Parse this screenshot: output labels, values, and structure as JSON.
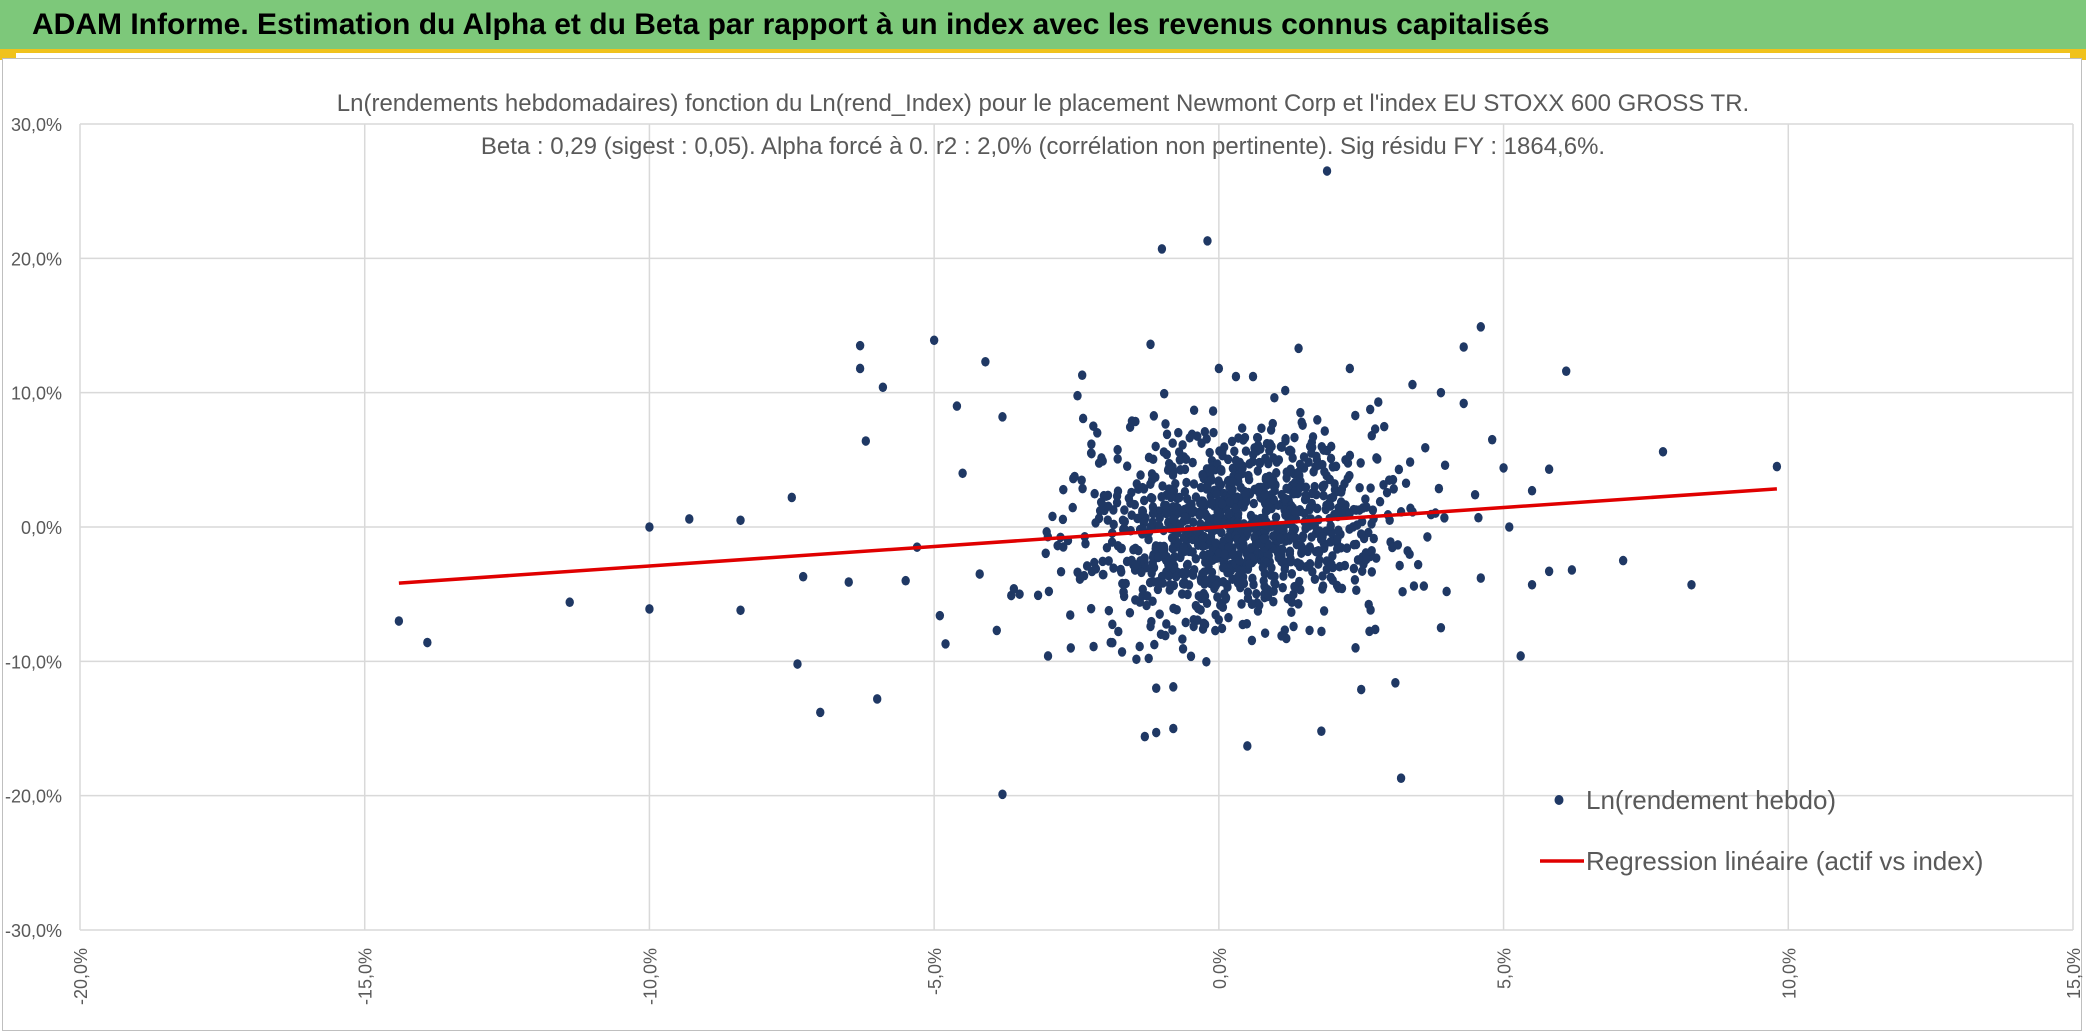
{
  "banner": {
    "title": "ADAM Informe. Estimation du Alpha et du Beta par rapport à un index avec les revenus connus capitalisés",
    "background_color": "#7dc87a",
    "accent_color": "#f0c21c"
  },
  "chart_data": {
    "type": "scatter",
    "title_line1": "Ln(rendements hebdomadaires) fonction du Ln(rend_Index) pour le placement Newmont Corp et l'index EU STOXX 600 GROSS TR.",
    "title_line2": "Beta : 0,29 (sigest : 0,05). Alpha forcé à 0. r2 : 2,0% (corrélation non pertinente). Sig résidu FY : 1864,6%.",
    "xlim": [
      -20,
      15
    ],
    "ylim": [
      -30,
      30
    ],
    "x_ticks": [
      -20,
      -15,
      -10,
      -5,
      0,
      5,
      10,
      15
    ],
    "y_ticks": [
      -30,
      -20,
      -10,
      0,
      10,
      20,
      30
    ],
    "x_tick_labels": [
      "-20,0%",
      "-15,0%",
      "-10,0%",
      "-5,0%",
      "0,0%",
      "5,0%",
      "10,0%",
      "15,0%"
    ],
    "y_tick_labels": [
      "-30,0%",
      "-20,0%",
      "-10,0%",
      "0,0%",
      "10,0%",
      "20,0%",
      "30,0%"
    ],
    "grid": true,
    "legend_position": "bottom-right",
    "series": [
      {
        "name": "Ln(rendement hebdo)",
        "kind": "scatter",
        "color": "#1f3864",
        "points": [
          [
            -14.4,
            -7.0
          ],
          [
            -13.9,
            -8.6
          ],
          [
            -11.4,
            -5.6
          ],
          [
            -10.0,
            -6.1
          ],
          [
            -10.0,
            0.0
          ],
          [
            -9.3,
            0.6
          ],
          [
            -8.4,
            0.5
          ],
          [
            -8.4,
            -6.2
          ],
          [
            -7.5,
            2.2
          ],
          [
            -7.4,
            -10.2
          ],
          [
            -7.3,
            -3.7
          ],
          [
            -7.0,
            -13.8
          ],
          [
            -6.5,
            -4.1
          ],
          [
            -6.3,
            13.5
          ],
          [
            -6.3,
            11.8
          ],
          [
            -6.2,
            6.4
          ],
          [
            -6.0,
            -12.8
          ],
          [
            -5.9,
            10.4
          ],
          [
            -5.5,
            -4.0
          ],
          [
            -5.3,
            -1.5
          ],
          [
            -5.0,
            13.9
          ],
          [
            -4.9,
            -6.6
          ],
          [
            -4.8,
            -8.7
          ],
          [
            -4.6,
            9.0
          ],
          [
            -4.5,
            4.0
          ],
          [
            -4.1,
            12.3
          ],
          [
            -3.9,
            -7.7
          ],
          [
            -3.8,
            8.2
          ],
          [
            -3.8,
            -19.9
          ],
          [
            -3.6,
            -4.6
          ],
          [
            -2.4,
            11.3
          ],
          [
            -1.9,
            -8.6
          ],
          [
            -1.7,
            -9.3
          ],
          [
            -1.2,
            13.6
          ],
          [
            -1.2,
            -7.4
          ],
          [
            -1.1,
            -12.0
          ],
          [
            -0.8,
            -11.9
          ],
          [
            -1.3,
            -15.6
          ],
          [
            -1.1,
            -15.3
          ],
          [
            -0.8,
            -15.0
          ],
          [
            -1.0,
            20.7
          ],
          [
            -0.2,
            21.3
          ],
          [
            0.0,
            11.8
          ],
          [
            0.3,
            11.2
          ],
          [
            0.5,
            -16.3
          ],
          [
            0.6,
            11.2
          ],
          [
            1.1,
            -8.1
          ],
          [
            1.4,
            13.3
          ],
          [
            2.3,
            11.8
          ],
          [
            1.8,
            -15.2
          ],
          [
            2.5,
            -12.1
          ],
          [
            2.8,
            9.3
          ],
          [
            3.1,
            -11.6
          ],
          [
            3.2,
            -18.7
          ],
          [
            3.4,
            10.6
          ],
          [
            3.9,
            10.0
          ],
          [
            4.3,
            13.4
          ],
          [
            4.3,
            9.2
          ],
          [
            4.5,
            2.4
          ],
          [
            4.6,
            14.9
          ],
          [
            4.6,
            -3.8
          ],
          [
            4.8,
            6.5
          ],
          [
            5.0,
            4.4
          ],
          [
            5.1,
            0.0
          ],
          [
            5.3,
            -9.6
          ],
          [
            5.5,
            2.7
          ],
          [
            5.5,
            -4.3
          ],
          [
            5.8,
            4.3
          ],
          [
            5.8,
            -3.3
          ],
          [
            6.1,
            11.6
          ],
          [
            6.2,
            -3.2
          ],
          [
            7.1,
            -2.5
          ],
          [
            7.8,
            5.6
          ],
          [
            8.3,
            -4.3
          ],
          [
            9.8,
            4.5
          ],
          [
            1.9,
            26.5
          ],
          [
            4.0,
            -4.8
          ],
          [
            3.9,
            -7.5
          ],
          [
            3.6,
            -4.4
          ],
          [
            3.5,
            -2.8
          ],
          [
            -3.0,
            -9.6
          ],
          [
            -2.6,
            -9.0
          ],
          [
            -2.2,
            -8.9
          ],
          [
            -3.5,
            -5.0
          ],
          [
            -4.2,
            -3.5
          ]
        ]
      },
      {
        "name": "Regression linéaire (actif vs index)",
        "kind": "line",
        "color": "#e00000",
        "beta": 0.29,
        "alpha": 0,
        "x_range": [
          -14.4,
          9.8
        ]
      }
    ]
  }
}
